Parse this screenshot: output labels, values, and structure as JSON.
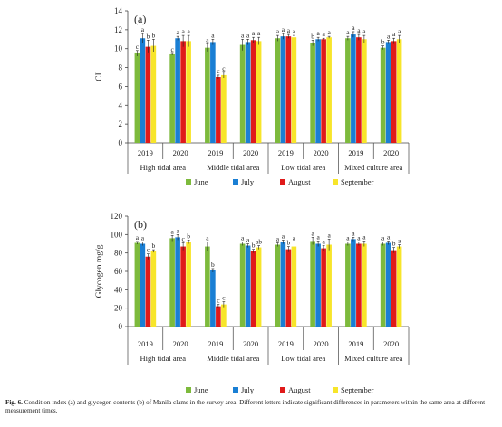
{
  "caption": {
    "label": "Fig. 6.",
    "text": "Condition index (a) and glycogen contents (b) of Manila clams in the survey area. Different letters indicate significant differences in parameters within the same area at different measurement times."
  },
  "legend": [
    "June",
    "July",
    "August",
    "September"
  ],
  "colors": {
    "June": "#7dba3c",
    "July": "#1a7fd4",
    "August": "#e01a1a",
    "September": "#f7e52a"
  },
  "chart_data": [
    {
      "type": "bar",
      "panel_label": "(a)",
      "ylabel": "CI",
      "ylim": [
        0,
        14
      ],
      "yticks": [
        0,
        2,
        4,
        6,
        8,
        10,
        12,
        14
      ],
      "grid": false,
      "legend_position": "bottom",
      "groups": [
        "High tidal area",
        "Middle tidal area",
        "Low tidal area",
        "Mixed culture area"
      ],
      "categories": [
        "2019",
        "2020",
        "2019",
        "2020",
        "2019",
        "2020",
        "2019",
        "2020"
      ],
      "series": [
        {
          "name": "June",
          "values": [
            9.5,
            9.4,
            10.1,
            10.4,
            11.1,
            10.6,
            11.1,
            10.1
          ],
          "errors": [
            0.3,
            0.1,
            0.4,
            0.6,
            0.3,
            0.3,
            0.2,
            0.2
          ],
          "letters": [
            "c",
            "c",
            "a",
            "a",
            "a",
            "b",
            "a",
            "b"
          ]
        },
        {
          "name": "July",
          "values": [
            11.1,
            11.1,
            10.7,
            10.7,
            11.3,
            11.0,
            11.5,
            10.7
          ],
          "errors": [
            0.5,
            0.2,
            0.3,
            0.3,
            0.3,
            0.2,
            0.3,
            0.2
          ],
          "letters": [
            "a",
            "a",
            "a",
            "a",
            "a",
            "a",
            "a",
            "a"
          ]
        },
        {
          "name": "August",
          "values": [
            10.2,
            10.8,
            7.0,
            10.9,
            11.3,
            11.0,
            11.2,
            10.8
          ],
          "errors": [
            0.7,
            0.6,
            0.2,
            0.3,
            0.2,
            0.1,
            0.3,
            0.3
          ],
          "letters": [
            "b",
            "a",
            "c",
            "a",
            "a",
            "a",
            "a",
            "a"
          ]
        },
        {
          "name": "September",
          "values": [
            10.3,
            10.8,
            7.2,
            10.8,
            11.2,
            11.2,
            11.0,
            11.0
          ],
          "errors": [
            0.7,
            0.6,
            0.3,
            0.4,
            0.2,
            0.1,
            0.4,
            0.4
          ],
          "letters": [
            "b",
            "a",
            "c",
            "a",
            "a",
            "a",
            "a",
            "a"
          ]
        }
      ]
    },
    {
      "type": "bar",
      "panel_label": "(b)",
      "ylabel": "Glycogen mg/g",
      "ylim": [
        0,
        120
      ],
      "yticks": [
        0,
        20,
        40,
        60,
        80,
        100,
        120
      ],
      "grid": false,
      "legend_position": "bottom",
      "groups": [
        "High tidal area",
        "Middle tidal area",
        "Low tidal area",
        "Mixed culture area"
      ],
      "categories": [
        "2019",
        "2020",
        "2019",
        "2020",
        "2019",
        "2020",
        "2019",
        "2020"
      ],
      "series": [
        {
          "name": "June",
          "values": [
            91,
            96,
            87,
            90,
            89,
            93,
            90,
            90
          ],
          "errors": [
            1.5,
            3,
            5,
            2,
            2,
            4,
            2,
            2
          ],
          "letters": [
            "a",
            "a",
            "a",
            "a",
            "a",
            "a",
            "a",
            "a"
          ]
        },
        {
          "name": "July",
          "values": [
            90,
            97,
            61,
            88,
            92,
            90,
            95,
            91
          ],
          "errors": [
            2,
            3,
            2,
            2,
            2,
            3,
            2,
            2
          ],
          "letters": [
            "a",
            "a",
            "b",
            "a",
            "a",
            "a",
            "a",
            "a"
          ]
        },
        {
          "name": "August",
          "values": [
            76,
            87,
            22,
            82,
            84,
            85,
            90,
            83
          ],
          "errors": [
            3,
            4,
            2,
            2,
            3,
            3,
            2,
            3
          ],
          "letters": [
            "c",
            "c",
            "c",
            "b",
            "b",
            "a",
            "a",
            "b"
          ]
        },
        {
          "name": "September",
          "values": [
            82,
            92,
            24,
            86,
            87,
            89,
            90,
            87
          ],
          "errors": [
            1.5,
            2,
            3,
            2,
            5,
            6,
            3,
            2
          ],
          "letters": [
            "b",
            "b",
            "c",
            "ab",
            "a",
            "a",
            "a",
            "a"
          ]
        }
      ]
    }
  ]
}
